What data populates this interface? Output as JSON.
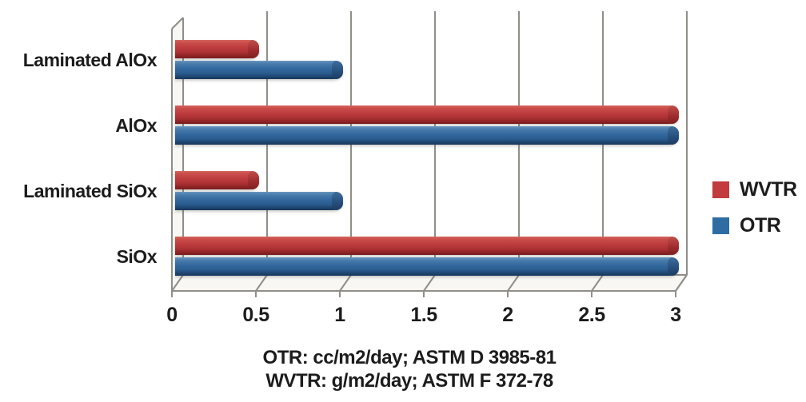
{
  "chart_data": {
    "type": "bar",
    "orientation": "horizontal",
    "style": "3d-cylinder-bars",
    "title": "",
    "categories": [
      "Laminated AlOx",
      "AlOx",
      "Laminated SiOx",
      "SiOx"
    ],
    "series": [
      {
        "name": "WVTR",
        "color": "#c23b3d",
        "values": [
          0.5,
          3.0,
          0.5,
          3.0
        ]
      },
      {
        "name": "OTR",
        "color": "#2e6da4",
        "values": [
          1.0,
          3.0,
          1.0,
          3.0
        ]
      }
    ],
    "x_axis": {
      "min": 0,
      "max": 3,
      "ticks": [
        0,
        0.5,
        1,
        1.5,
        2,
        2.5,
        3
      ],
      "tick_labels": [
        "0",
        "0.5",
        "1",
        "1.5",
        "2",
        "2.5",
        "3"
      ]
    },
    "grid": "vertical gridlines on back wall",
    "legend": {
      "position": "right",
      "items": [
        {
          "label": "WVTR",
          "color": "#c23b3d"
        },
        {
          "label": "OTR",
          "color": "#2e6da4"
        }
      ]
    },
    "footnotes": [
      "OTR: cc/m2/day; ASTM D 3985-81",
      "WVTR: g/m2/day; ASTM F 372-78"
    ]
  },
  "colors": {
    "wvtr_bar": "#c23b3d",
    "otr_bar": "#2e6da4",
    "gridline": "#8f8f88",
    "wall_fill": "#f8f7f3",
    "text": "#1c1c1c",
    "background": "#ffffff"
  }
}
